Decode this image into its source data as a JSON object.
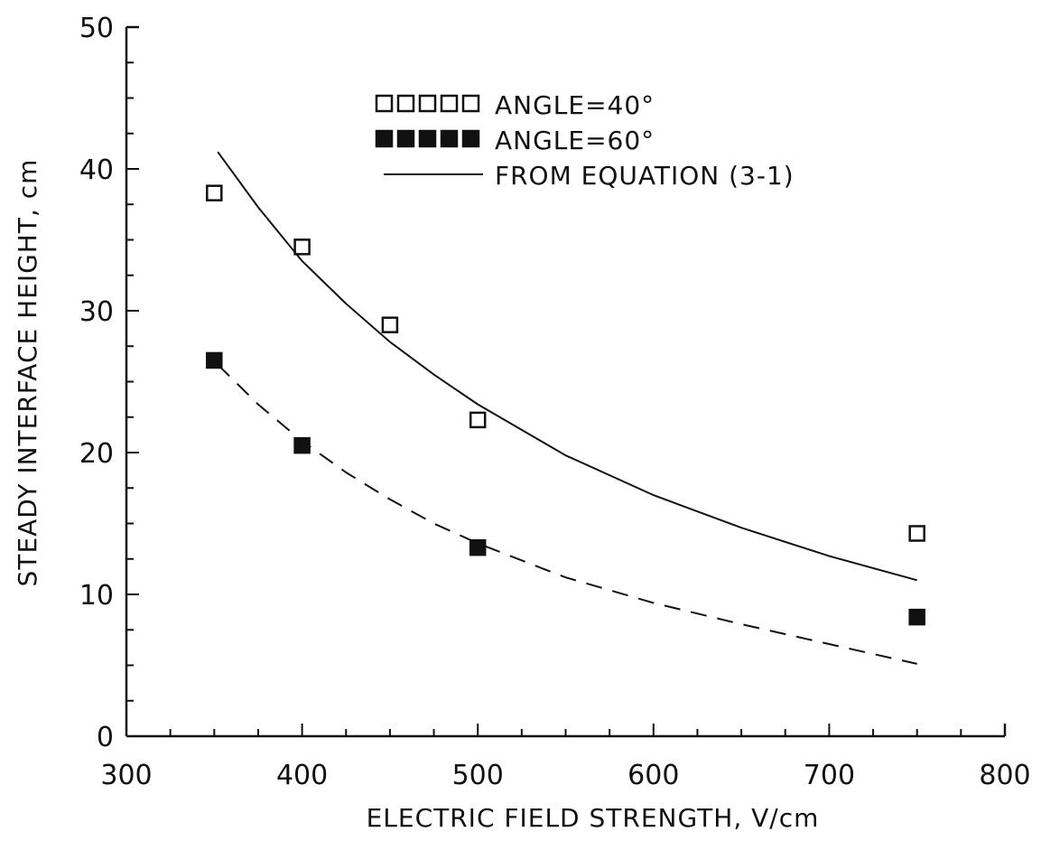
{
  "chart_data": {
    "type": "scatter",
    "title": "",
    "xlabel": "ELECTRIC FIELD STRENGTH, V/cm",
    "ylabel": "STEADY INTERFACE HEIGHT, cm",
    "xlim": [
      300,
      800
    ],
    "ylim": [
      0,
      50
    ],
    "x_ticks": [
      "300",
      "400",
      "500",
      "600",
      "700",
      "800"
    ],
    "y_ticks": [
      "0",
      "10",
      "20",
      "30",
      "40",
      "50"
    ],
    "x_tick_values": [
      300,
      400,
      500,
      600,
      700,
      800
    ],
    "y_tick_values": [
      0,
      10,
      20,
      30,
      40,
      50
    ],
    "grid": false,
    "legend_position": "top-center",
    "series": [
      {
        "name": "ANGLE=40°",
        "kind": "markers",
        "marker": "open-square",
        "x": [
          350,
          400,
          450,
          500,
          750
        ],
        "y": [
          38.3,
          34.5,
          29.0,
          22.3,
          14.3
        ]
      },
      {
        "name": "ANGLE=60°",
        "kind": "markers",
        "marker": "filled-square",
        "x": [
          350,
          400,
          500,
          750
        ],
        "y": [
          26.5,
          20.5,
          13.3,
          8.4
        ]
      },
      {
        "name": "FROM EQUATION (3-1)",
        "kind": "line",
        "style": "solid",
        "x": [
          352,
          375,
          400,
          425,
          450,
          475,
          500,
          550,
          600,
          650,
          700,
          750
        ],
        "y": [
          41.2,
          37.3,
          33.5,
          30.5,
          27.8,
          25.5,
          23.4,
          19.8,
          17.0,
          14.7,
          12.7,
          11.0
        ]
      },
      {
        "name": "",
        "kind": "line",
        "style": "dashed",
        "x": [
          352,
          375,
          400,
          425,
          450,
          475,
          500,
          550,
          600,
          650,
          700,
          750
        ],
        "y": [
          26.2,
          23.4,
          20.8,
          18.6,
          16.7,
          15.0,
          13.6,
          11.2,
          9.4,
          7.9,
          6.5,
          5.1
        ]
      }
    ]
  }
}
